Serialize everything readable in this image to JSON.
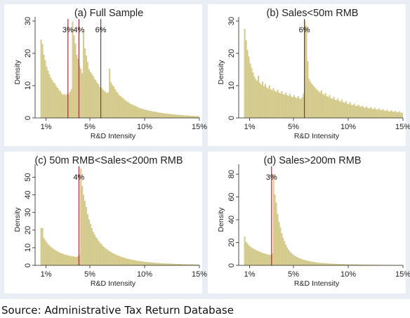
{
  "source_caption": "Source: Administrative Tax Return Database",
  "colors": {
    "bar": "#d8cf95",
    "bar_edge": "#c5b96e",
    "marker": "#9b1d2e",
    "figure_bg": "#e8eef3"
  },
  "chart_data": [
    {
      "type": "bar",
      "title": "(a) Full Sample",
      "xlabel": "R&D Intensity",
      "ylabel": "Density",
      "xlim": [
        0,
        15
      ],
      "ylim": [
        0,
        30
      ],
      "x_ticks": [
        {
          "value": 1,
          "label": "1%"
        },
        {
          "value": 5,
          "label": "5%"
        },
        {
          "value": 10,
          "label": "10%"
        },
        {
          "value": 15,
          "label": "15%"
        }
      ],
      "y_ticks": [
        0,
        10,
        20,
        30
      ],
      "bin_width": 0.125,
      "x_start": 0.5,
      "density": [
        24.2,
        22.8,
        19.5,
        17.8,
        15.8,
        14.6,
        13.5,
        12.4,
        11.8,
        11.0,
        10.6,
        9.8,
        9.3,
        8.6,
        8.2,
        7.5,
        7.1,
        7.3,
        7.0,
        7.5,
        7.2,
        8.0,
        8.8,
        29.8,
        25.5,
        23.0,
        19.5,
        18.2,
        16.2,
        15.2,
        13.8,
        27.0,
        21.5,
        19.3,
        17.3,
        15.0,
        14.2,
        13.6,
        12.9,
        12.0,
        11.6,
        10.8,
        10.4,
        9.5,
        9.3,
        8.8,
        8.4,
        8.0,
        7.6,
        7.9,
        15.2,
        11.0,
        10.2,
        9.7,
        8.9,
        8.1,
        7.7,
        7.0,
        6.7,
        6.3,
        6.0,
        5.5,
        5.3,
        5.0,
        4.7,
        4.4,
        4.2,
        4.0,
        3.8,
        3.6,
        3.4,
        3.2,
        3.0,
        2.9,
        2.8,
        2.6,
        2.5,
        2.4,
        2.3,
        2.2,
        2.1,
        2.0,
        1.9,
        1.9,
        1.8,
        1.7,
        1.6,
        1.6,
        1.5,
        1.4,
        1.4,
        1.3,
        1.3,
        1.2,
        1.2,
        1.1,
        1.1,
        1.0,
        1.0,
        0.9,
        0.9,
        0.9,
        0.8,
        0.8,
        0.8,
        0.7,
        0.7,
        0.7,
        0.7,
        0.6,
        0.6,
        0.6,
        0.6,
        0.5,
        0.5,
        0.5
      ],
      "markers": [
        {
          "x": 3,
          "label": "3%"
        },
        {
          "x": 4,
          "label": "4%"
        },
        {
          "x": 6,
          "label": "6%"
        }
      ]
    },
    {
      "type": "bar",
      "title": "(b) Sales<50m RMB",
      "xlabel": "R&D Intensity",
      "ylabel": "Density",
      "xlim": [
        0,
        15
      ],
      "ylim": [
        0,
        30
      ],
      "x_ticks": [
        {
          "value": 1,
          "label": "1%"
        },
        {
          "value": 5,
          "label": "5%"
        },
        {
          "value": 10,
          "label": "10%"
        },
        {
          "value": 15,
          "label": "15%"
        }
      ],
      "y_ticks": [
        0,
        10,
        20,
        30
      ],
      "bin_width": 0.125,
      "x_start": 0.5,
      "density": [
        27.5,
        24.0,
        21.0,
        19.0,
        16.8,
        15.5,
        14.0,
        12.8,
        12.0,
        11.5,
        13.0,
        10.8,
        10.3,
        11.2,
        9.8,
        10.5,
        9.4,
        9.0,
        10.0,
        8.8,
        8.5,
        9.2,
        8.3,
        8.0,
        8.7,
        7.8,
        7.5,
        8.2,
        7.3,
        7.1,
        7.8,
        7.0,
        6.8,
        7.4,
        6.6,
        6.4,
        7.0,
        6.3,
        6.1,
        6.7,
        6.0,
        5.8,
        6.4,
        7.5,
        31.0,
        28.5,
        17.5,
        12.0,
        11.2,
        10.5,
        10.0,
        9.5,
        9.0,
        8.6,
        8.2,
        7.8,
        8.5,
        7.4,
        7.0,
        7.6,
        6.7,
        6.4,
        7.0,
        6.1,
        5.8,
        6.5,
        5.6,
        5.4,
        6.0,
        5.2,
        5.0,
        5.6,
        4.8,
        4.6,
        5.2,
        4.4,
        4.2,
        4.8,
        4.0,
        3.9,
        4.4,
        3.7,
        3.6,
        4.1,
        3.5,
        3.4,
        3.8,
        3.2,
        3.1,
        3.5,
        3.0,
        2.9,
        3.3,
        2.8,
        2.7,
        3.1,
        2.6,
        2.5,
        2.9,
        2.4,
        2.3,
        2.7,
        2.2,
        2.1,
        2.5,
        2.0,
        1.9,
        2.3,
        1.9,
        1.8,
        2.1,
        1.7,
        1.7,
        2.0,
        1.6,
        1.6
      ],
      "markers": [
        {
          "x": 6,
          "label": "6%"
        }
      ]
    },
    {
      "type": "bar",
      "title": "(c) 50m RMB<Sales<200m RMB",
      "xlabel": "R&D Intensity",
      "ylabel": "Density",
      "xlim": [
        0,
        15
      ],
      "ylim": [
        0,
        55
      ],
      "x_ticks": [
        {
          "value": 1,
          "label": "1%"
        },
        {
          "value": 5,
          "label": "5%"
        },
        {
          "value": 10,
          "label": "10%"
        },
        {
          "value": 15,
          "label": "15%"
        }
      ],
      "y_ticks": [
        0,
        10,
        20,
        30,
        40,
        50
      ],
      "bin_width": 0.125,
      "x_start": 0.5,
      "density": [
        21.0,
        21.0,
        15.5,
        14.2,
        13.0,
        12.0,
        11.2,
        10.5,
        9.8,
        9.2,
        8.7,
        8.2,
        7.8,
        7.3,
        7.0,
        6.7,
        6.4,
        6.1,
        5.9,
        5.7,
        5.5,
        5.3,
        5.2,
        5.0,
        4.9,
        4.8,
        4.7,
        5.2,
        6.0,
        54.8,
        45.0,
        40.0,
        36.5,
        33.0,
        29.0,
        26.0,
        23.5,
        21.0,
        19.0,
        17.5,
        16.0,
        15.0,
        13.8,
        12.8,
        12.0,
        11.0,
        10.3,
        9.6,
        9.0,
        8.5,
        8.0,
        7.5,
        7.0,
        6.6,
        6.2,
        5.8,
        5.5,
        5.2,
        4.9,
        4.6,
        4.4,
        4.1,
        3.9,
        3.7,
        3.5,
        3.3,
        3.1,
        3.0,
        2.8,
        2.7,
        2.5,
        2.4,
        2.3,
        2.2,
        2.1,
        2.0,
        1.9,
        1.8,
        1.7,
        1.7,
        1.6,
        1.5,
        1.5,
        1.4,
        1.3,
        1.3,
        1.2,
        1.2,
        1.1,
        1.1,
        1.0,
        1.0,
        1.0,
        0.9,
        0.9,
        0.9,
        0.8,
        0.8,
        0.8,
        0.7,
        0.7,
        0.7,
        0.7,
        0.6,
        0.6,
        0.6,
        0.6,
        0.5,
        0.5,
        0.5,
        0.5,
        0.5,
        0.4,
        0.4,
        0.4,
        0.4
      ],
      "markers": [
        {
          "x": 4,
          "label": "4%"
        }
      ]
    },
    {
      "type": "bar",
      "title": "(d) Sales>200m RMB",
      "xlabel": "R&D Intensity",
      "ylabel": "Density",
      "xlim": [
        0,
        15
      ],
      "ylim": [
        0,
        85
      ],
      "x_ticks": [
        {
          "value": 1,
          "label": "1%"
        },
        {
          "value": 5,
          "label": "5%"
        },
        {
          "value": 10,
          "label": "10%"
        },
        {
          "value": 15,
          "label": "15%"
        }
      ],
      "y_ticks": [
        0,
        20,
        40,
        60,
        80
      ],
      "bin_width": 0.125,
      "x_start": 0.5,
      "density": [
        25.0,
        20.5,
        19.0,
        17.5,
        16.5,
        15.5,
        14.8,
        14.0,
        13.5,
        12.8,
        12.2,
        11.8,
        11.2,
        10.8,
        10.4,
        10.0,
        9.7,
        9.4,
        9.0,
        9.2,
        10.5,
        80.0,
        62.0,
        55.0,
        45.0,
        38.0,
        33.0,
        28.0,
        24.0,
        21.0,
        18.0,
        15.5,
        13.5,
        12.0,
        10.8,
        9.6,
        8.7,
        7.9,
        7.2,
        6.6,
        6.1,
        5.6,
        5.2,
        4.8,
        4.4,
        4.1,
        3.8,
        3.5,
        3.3,
        3.1,
        2.9,
        2.7,
        2.5,
        2.3,
        2.2,
        2.1,
        2.0,
        1.9,
        1.8,
        1.7,
        1.6,
        1.5,
        1.4,
        1.4,
        1.3,
        1.3,
        1.2,
        1.2,
        1.1,
        1.1,
        1.0,
        1.0,
        1.0,
        0.9,
        0.9,
        0.9,
        0.8,
        0.8,
        0.8,
        0.7,
        0.7,
        0.7,
        0.7,
        0.6,
        0.6,
        0.6,
        0.6,
        0.5,
        0.5,
        0.5,
        0.5,
        0.5,
        0.4,
        0.4,
        0.4,
        0.4,
        0.4,
        0.4,
        0.3,
        0.3,
        0.3,
        0.3,
        0.3,
        0.3,
        0.3,
        0.3,
        0.3,
        0.2,
        0.2,
        0.2,
        0.2,
        0.2,
        0.2,
        0.2,
        0.2,
        0.2
      ],
      "markers": [
        {
          "x": 3,
          "label": "3%"
        }
      ]
    }
  ]
}
